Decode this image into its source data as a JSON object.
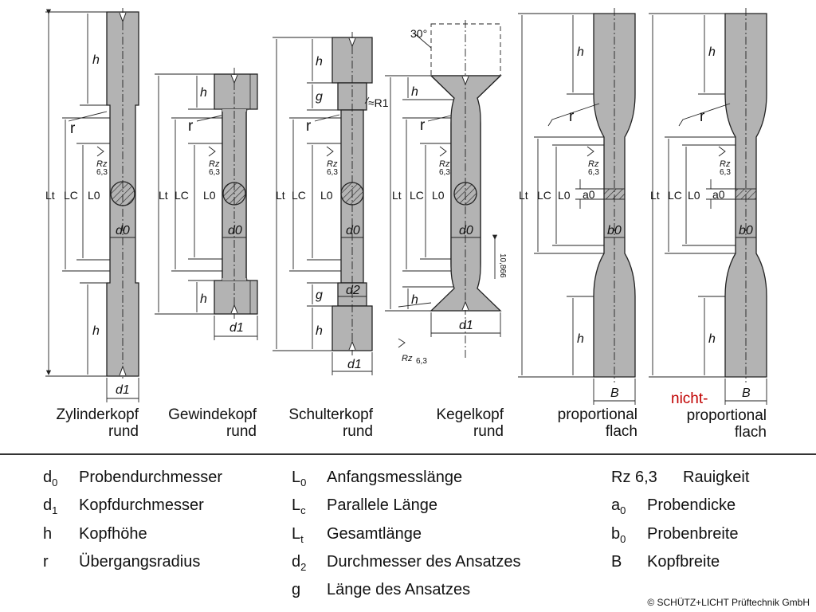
{
  "specimens": [
    {
      "name1": "Zylinderkopf",
      "name2": "rund"
    },
    {
      "name1": "Gewindekopf",
      "name2": "rund"
    },
    {
      "name1": "Schulterkopf",
      "name2": "rund"
    },
    {
      "name1": "Kegelkopf",
      "name2": "rund"
    },
    {
      "name1": "proportional",
      "name2": "flach"
    },
    {
      "prefix": "nicht-",
      "name1": "proportional",
      "name2": "flach"
    }
  ],
  "dimension_labels": {
    "h": "h",
    "g": "g",
    "r": "r",
    "Lt": "Lt",
    "Lc": "LC",
    "L0": "L0",
    "d0": "d0",
    "d1": "d1",
    "d2": "d2",
    "a0": "a0",
    "b0": "b0",
    "B": "B",
    "Rz": "Rz",
    "rz_value": "6,3",
    "radius_R1": "≈R1",
    "angle": "30°",
    "chamfer": "10,866"
  },
  "legend": {
    "col1": [
      {
        "sym": "d",
        "sub": "0",
        "text": "Probendurchmesser"
      },
      {
        "sym": "d",
        "sub": "1",
        "text": "Kopfdurchmesser"
      },
      {
        "sym": "h",
        "sub": "",
        "text": "Kopfhöhe"
      },
      {
        "sym": "r",
        "sub": "",
        "text": "Übergangsradius"
      }
    ],
    "col2": [
      {
        "sym": "L",
        "sub": "0",
        "text": "Anfangsmesslänge"
      },
      {
        "sym": "L",
        "sub": "c",
        "text": "Parallele Länge"
      },
      {
        "sym": "L",
        "sub": "t",
        "text": "Gesamtlänge"
      },
      {
        "sym": "d",
        "sub": "2",
        "text": "Durchmesser des Ansatzes"
      },
      {
        "sym": "g",
        "sub": "",
        "text": "Länge des Ansatzes"
      }
    ],
    "col3": [
      {
        "sym": "Rz 6,3",
        "sub": "",
        "text": "Rauigkeit"
      },
      {
        "sym": "a",
        "sub": "0",
        "text": "Probendicke"
      },
      {
        "sym": "b",
        "sub": "0",
        "text": "Probenbreite"
      },
      {
        "sym": "B",
        "sub": "",
        "text": "Kopfbreite"
      }
    ]
  },
  "copyright": "© SCHÜTZ+LICHT Prüftechnik GmbH",
  "colors": {
    "specimen_fill": "#b3b3b3",
    "stroke": "#222222",
    "accent_red": "#c00000"
  }
}
